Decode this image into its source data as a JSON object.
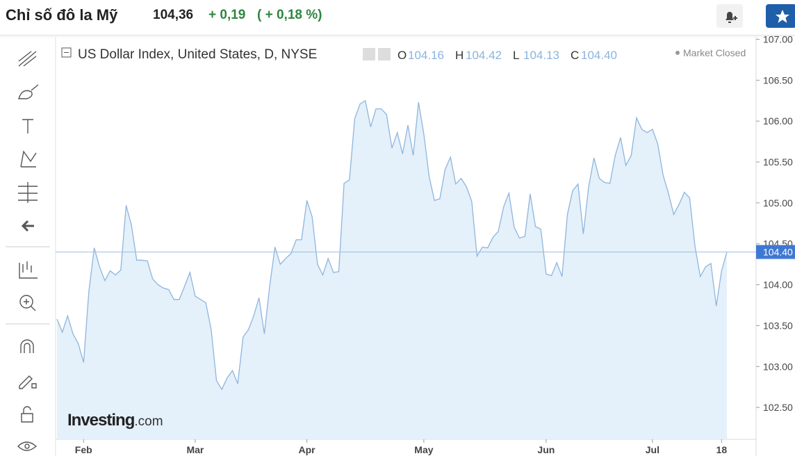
{
  "header": {
    "title": "Chỉ số đô la Mỹ",
    "price": "104,36",
    "change": "+ 0,19",
    "change_pct": "( + 0,18 %)"
  },
  "chart_data": {
    "type": "area",
    "title": "US Dollar Index, United States, D, NYSE",
    "legend": [
      {
        "key": "O",
        "value": "104.16"
      },
      {
        "key": "H",
        "value": "104.42"
      },
      {
        "key": "L",
        "value": "104.13"
      },
      {
        "key": "C",
        "value": "104.40"
      }
    ],
    "status": "Market Closed",
    "watermark": {
      "brand": "Investing",
      "suffix": ".com"
    },
    "color": "#8fb5dc",
    "fill": "#e4f0fa",
    "grid": false,
    "categories": [
      null,
      null,
      null,
      null,
      null,
      "Feb",
      null,
      null,
      null,
      null,
      null,
      null,
      null,
      null,
      null,
      null,
      null,
      null,
      null,
      null,
      null,
      null,
      null,
      null,
      null,
      null,
      "Mar",
      null,
      null,
      null,
      null,
      null,
      null,
      null,
      null,
      null,
      null,
      null,
      null,
      null,
      null,
      null,
      null,
      null,
      null,
      null,
      null,
      "Apr",
      null,
      null,
      null,
      null,
      null,
      null,
      null,
      null,
      null,
      null,
      null,
      null,
      null,
      null,
      null,
      null,
      null,
      null,
      null,
      null,
      null,
      "May",
      null,
      null,
      null,
      null,
      null,
      null,
      null,
      null,
      null,
      null,
      null,
      null,
      null,
      null,
      null,
      null,
      null,
      null,
      null,
      null,
      null,
      null,
      "Jun",
      null,
      null,
      null,
      null,
      null,
      null,
      null,
      null,
      null,
      null,
      null,
      null,
      null,
      null,
      null,
      null,
      null,
      null,
      null,
      "Jul",
      null,
      null,
      null,
      null,
      null,
      null,
      null,
      null,
      null,
      null,
      null,
      null,
      "18",
      null
    ],
    "values": [
      103.58,
      103.42,
      103.62,
      103.4,
      103.28,
      103.05,
      103.92,
      104.45,
      104.22,
      104.05,
      104.17,
      104.12,
      104.18,
      104.97,
      104.73,
      104.3,
      104.3,
      104.29,
      104.07,
      104.0,
      103.96,
      103.94,
      103.82,
      103.82,
      103.98,
      104.15,
      103.86,
      103.82,
      103.78,
      103.45,
      102.83,
      102.72,
      102.86,
      102.95,
      102.79,
      103.36,
      103.45,
      103.62,
      103.84,
      103.4,
      103.98,
      104.46,
      104.25,
      104.32,
      104.38,
      104.55,
      104.55,
      105.03,
      104.83,
      104.25,
      104.12,
      104.32,
      104.15,
      104.16,
      105.24,
      105.28,
      106.03,
      106.21,
      106.25,
      105.93,
      106.15,
      106.15,
      106.08,
      105.67,
      105.86,
      105.6,
      105.95,
      105.58,
      106.23,
      105.84,
      105.32,
      105.03,
      105.05,
      105.41,
      105.56,
      105.23,
      105.3,
      105.2,
      105.02,
      104.35,
      104.46,
      104.45,
      104.58,
      104.65,
      104.95,
      105.12,
      104.7,
      104.57,
      104.59,
      105.11,
      104.71,
      104.68,
      104.13,
      104.11,
      104.27,
      104.1,
      104.86,
      105.15,
      105.23,
      104.62,
      105.2,
      105.55,
      105.3,
      105.25,
      105.24,
      105.58,
      105.8,
      105.46,
      105.58,
      106.04,
      105.9,
      105.86,
      105.9,
      105.72,
      105.34,
      105.12,
      104.86,
      104.98,
      105.13,
      105.06,
      104.47,
      104.1,
      104.22,
      104.26,
      103.74,
      104.17,
      104.4
    ],
    "ylim": [
      102.11,
      107.03
    ],
    "yticks": [
      {
        "value": 102.5,
        "label": "102.50"
      },
      {
        "value": 103,
        "label": "103.00"
      },
      {
        "value": 103.5,
        "label": "103.50"
      },
      {
        "value": 104,
        "label": "104.00"
      },
      {
        "value": 104.5,
        "label": "104.50"
      },
      {
        "value": 105,
        "label": "105.00"
      },
      {
        "value": 105.5,
        "label": "105.50"
      },
      {
        "value": 106,
        "label": "106.00"
      },
      {
        "value": 106.5,
        "label": "106.50"
      },
      {
        "value": 107,
        "label": "107.00"
      }
    ],
    "last_price": {
      "value": 104.4,
      "label": "104.40"
    }
  }
}
